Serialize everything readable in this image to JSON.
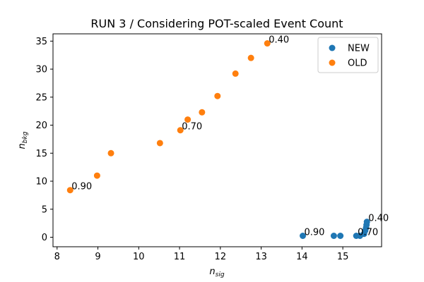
{
  "chart_data": {
    "type": "scatter",
    "title": "RUN 3 / Considering POT-scaled Event Count",
    "xlabel": {
      "base": "n",
      "sub": "sig"
    },
    "ylabel": {
      "base": "n",
      "sub": "bkg"
    },
    "xlim": [
      7.9,
      15.95
    ],
    "ylim": [
      -1.7,
      36.3
    ],
    "xticks": [
      8,
      9,
      10,
      11,
      12,
      13,
      14,
      15
    ],
    "yticks": [
      0,
      5,
      10,
      15,
      20,
      25,
      30,
      35
    ],
    "grid": false,
    "legend_position": "top-right",
    "series": [
      {
        "name": "NEW",
        "color": "#1f77b4",
        "points": [
          [
            14.02,
            0.25
          ],
          [
            14.78,
            0.25
          ],
          [
            14.94,
            0.25
          ],
          [
            15.33,
            0.25
          ],
          [
            15.42,
            0.25
          ],
          [
            15.52,
            0.6
          ],
          [
            15.55,
            1.2
          ],
          [
            15.57,
            1.7
          ],
          [
            15.58,
            2.2
          ],
          [
            15.59,
            2.75
          ]
        ]
      },
      {
        "name": "OLD",
        "color": "#ff7f0e",
        "points": [
          [
            8.32,
            8.4
          ],
          [
            8.98,
            11.0
          ],
          [
            9.32,
            15.0
          ],
          [
            10.52,
            16.8
          ],
          [
            11.02,
            19.1
          ],
          [
            11.2,
            21.0
          ],
          [
            11.55,
            22.3
          ],
          [
            11.93,
            25.2
          ],
          [
            12.37,
            29.2
          ],
          [
            12.75,
            32.0
          ],
          [
            13.15,
            34.6
          ]
        ]
      }
    ],
    "annotations": [
      {
        "text": "0.90",
        "x": 8.32,
        "y": 8.4
      },
      {
        "text": "0.70",
        "x": 11.02,
        "y": 19.1
      },
      {
        "text": "0.40",
        "x": 13.15,
        "y": 34.6
      },
      {
        "text": "0.90",
        "x": 14.02,
        "y": 0.25
      },
      {
        "text": "0.70",
        "x": 15.33,
        "y": 0.25
      },
      {
        "text": "0.40",
        "x": 15.59,
        "y": 2.75
      }
    ]
  }
}
